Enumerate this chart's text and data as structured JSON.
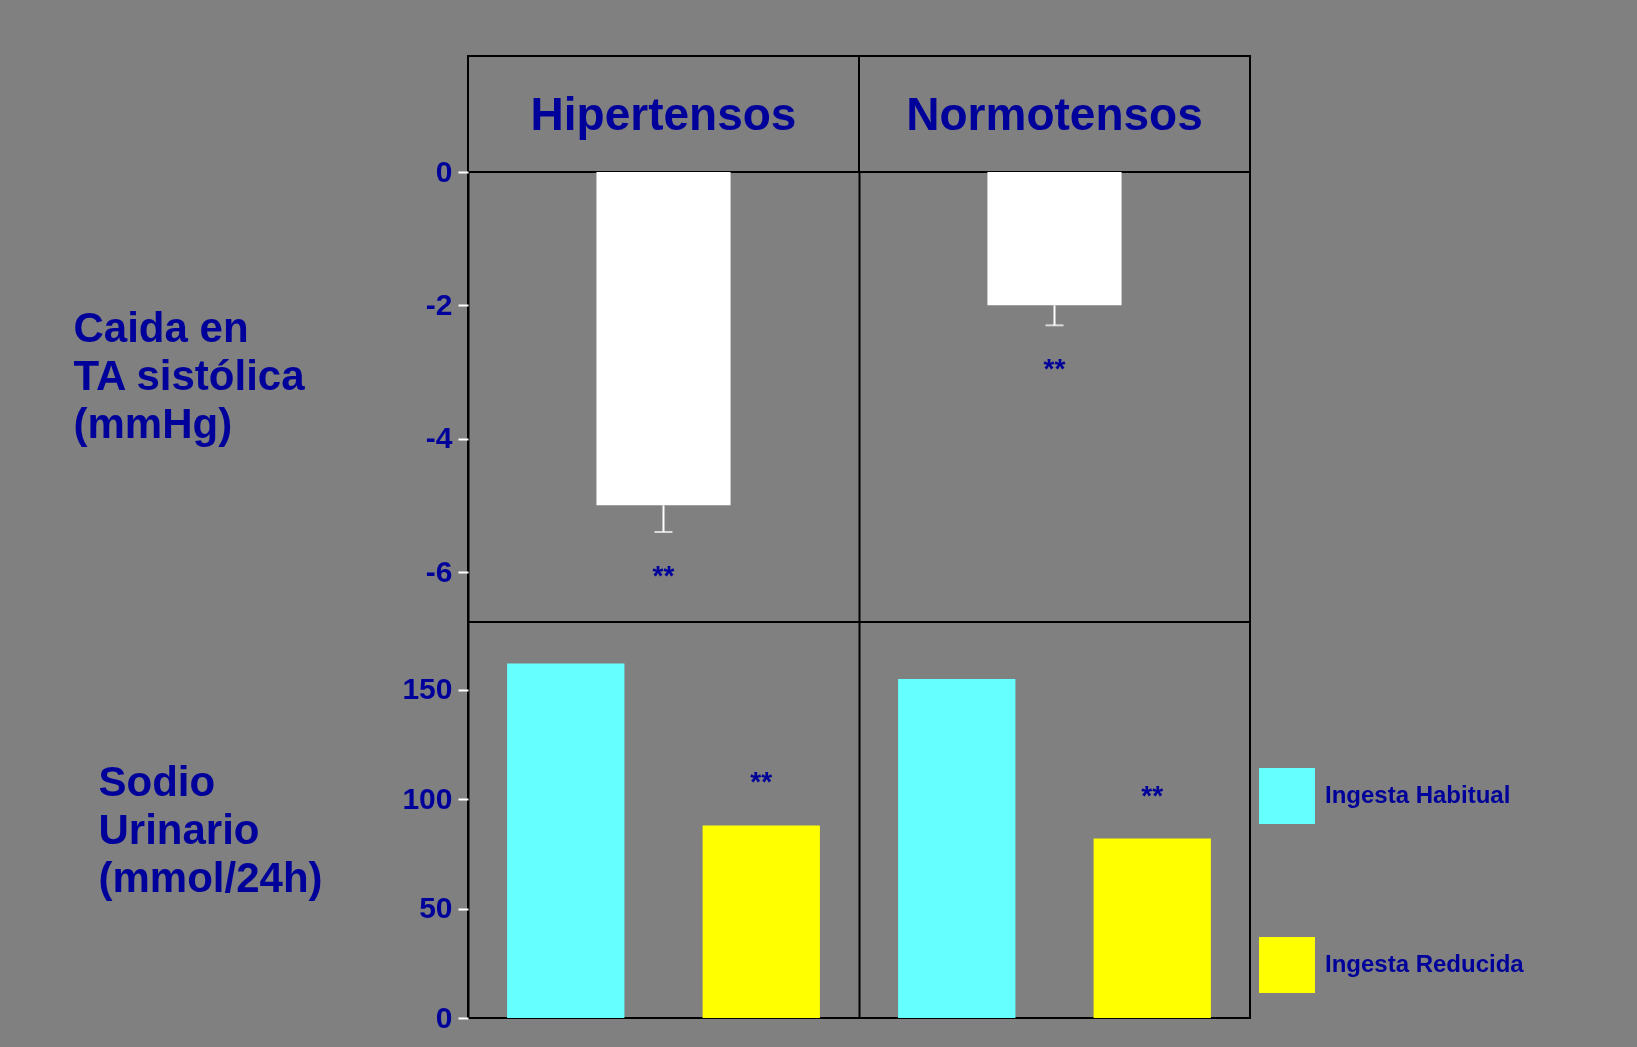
{
  "chart_data": [
    {
      "type": "bar",
      "ylabel": "Caida en\nTA sistólica\n(mmHg)",
      "categories": [
        "Hipertensos",
        "Normotensos"
      ],
      "values": [
        -5.0,
        -2.0
      ],
      "color": "#ffffff",
      "errors": [
        [
          -5.4,
          -5.0
        ],
        [
          -2.3,
          -2.0
        ]
      ],
      "ylim": [
        -6.75,
        0
      ],
      "yticks": [
        -6,
        -4,
        -2,
        0
      ],
      "grid": "x",
      "annotations": [
        "**",
        "**"
      ]
    },
    {
      "type": "bar",
      "ylabel": "Sodio\nUrinario\n(mmol/24h)",
      "categories": [
        null,
        null
      ],
      "series": [
        {
          "name": "Ingesta Habitual",
          "color": "#66ffff",
          "values": [
            162,
            155
          ]
        },
        {
          "name": "Ingesta Reducida",
          "color": "#ffff00",
          "values": [
            88,
            82
          ]
        }
      ],
      "ylim": [
        0,
        181
      ],
      "yticks": [
        0,
        50,
        100,
        150
      ],
      "tick_labels": "y",
      "grid": "x",
      "legend": "right",
      "annotations": [
        "**",
        "**"
      ]
    }
  ]
}
